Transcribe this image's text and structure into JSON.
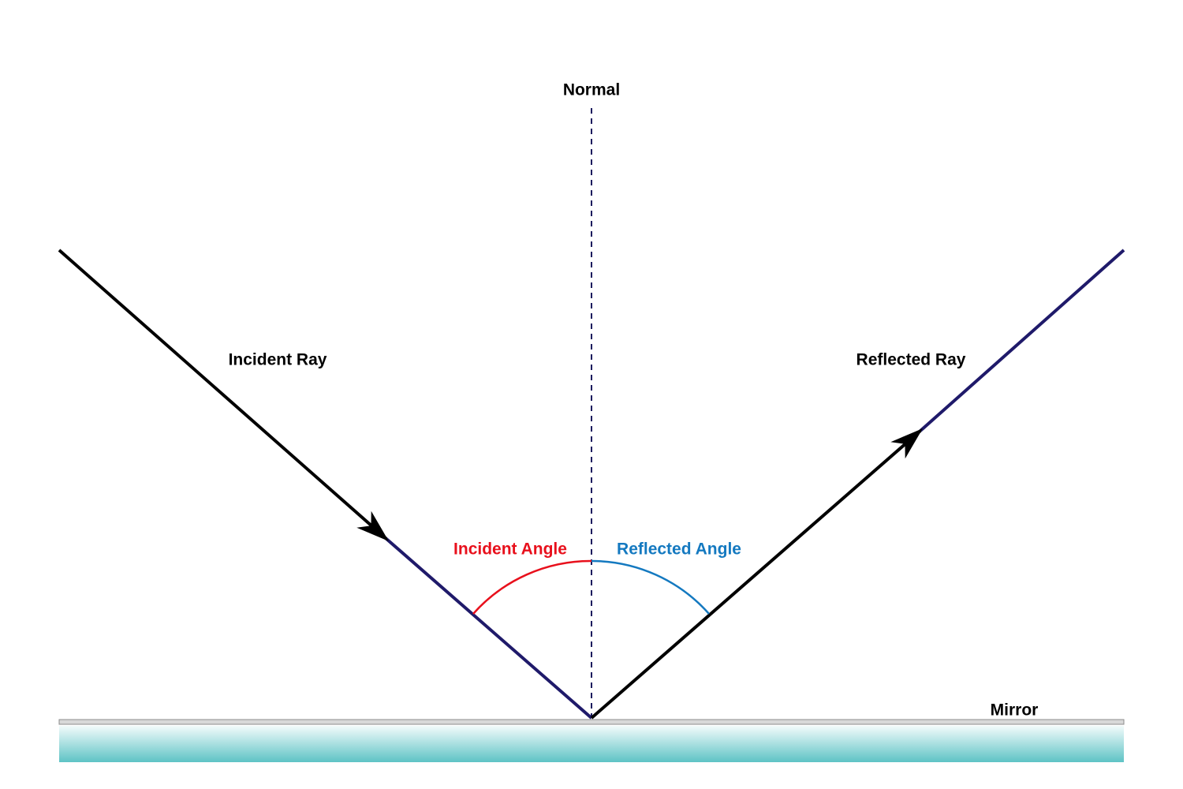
{
  "normal": {
    "label": "Normal"
  },
  "incident_ray": {
    "label": "Incident Ray"
  },
  "reflected_ray": {
    "label": "Reflected Ray"
  },
  "incident_angle": {
    "label": "Incident Angle"
  },
  "reflected_angle": {
    "label": "Reflected Angle"
  },
  "mirror": {
    "label": "Mirror"
  }
}
